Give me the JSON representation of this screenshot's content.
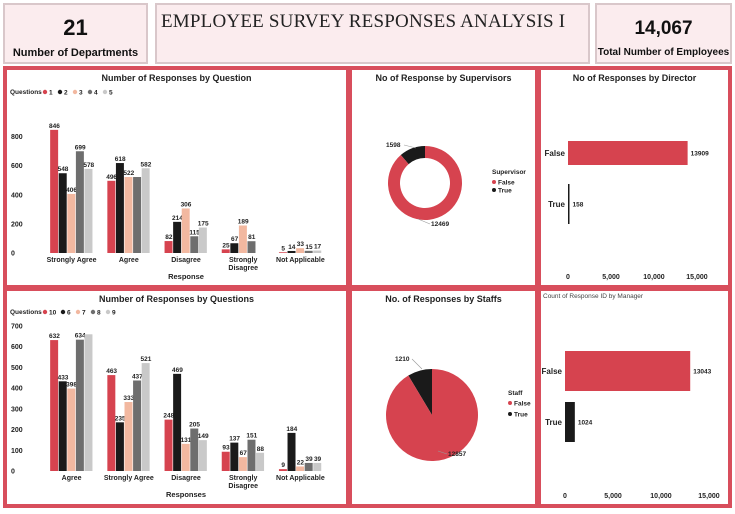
{
  "kpis": {
    "departments": {
      "value": "21",
      "label": "Number of  Departments"
    },
    "employees": {
      "value": "14,067",
      "label": "Total Number of Employees"
    }
  },
  "title": "EMPLOYEE SURVEY RESPONSES ANALYSIS I",
  "panels": {
    "q1_title": "Number of Responses by Question",
    "q2_title": "Number of Responses by Questions",
    "supervisor_title": "No of Response by Supervisors",
    "director_title": "No of Responses by Director",
    "staff_title": "No. of Responses by Staffs",
    "manager_title": "Count of Response ID by Manager"
  },
  "colors": {
    "red": "#d6434f",
    "black": "#1a1a1a",
    "dark": "#4d4d4d",
    "peach": "#f2b8a0",
    "grey": "#bdbdbd",
    "gray2": "#6e6e6e",
    "frame": "#d84e5c"
  },
  "chart_data": [
    {
      "id": "q1",
      "type": "bar",
      "title": "Number of Responses by Question",
      "legend_title": "Questions",
      "categories": [
        "Strongly Agree",
        "Agree",
        "Disagree",
        "Strongly Disagree",
        "Not Applicable"
      ],
      "series": [
        {
          "name": "1",
          "color": "#d6434f",
          "values": [
            846,
            496,
            82,
            25,
            5
          ]
        },
        {
          "name": "2",
          "color": "#1a1a1a",
          "values": [
            548,
            618,
            214,
            67,
            14
          ]
        },
        {
          "name": "3",
          "color": "#f2b8a0",
          "values": [
            406,
            522,
            306,
            189,
            33
          ]
        },
        {
          "name": "4",
          "color": "#6e6e6e",
          "values": [
            699,
            522,
            115,
            81,
            15
          ]
        },
        {
          "name": "5",
          "color": "#c9c9c9",
          "values": [
            578,
            582,
            175,
            0,
            17
          ]
        }
      ],
      "labels": [
        [
          "846",
          "496",
          "82",
          "25",
          "5"
        ],
        [
          "548",
          "618",
          "214",
          "67",
          "14"
        ],
        [
          "406",
          "522",
          "306",
          "189",
          "33"
        ],
        [
          "699",
          "",
          "115",
          "81",
          "15"
        ],
        [
          "578",
          "582",
          "175",
          "",
          "17"
        ]
      ],
      "xlabel": "Response",
      "yticks": [
        "0",
        "200",
        "400",
        "600",
        "800"
      ],
      "ylim": [
        0,
        900
      ],
      "legend_position": "top-left"
    },
    {
      "id": "q2",
      "type": "bar",
      "title": "Number of Responses by Questions",
      "legend_title": "Questions",
      "categories": [
        "Agree",
        "Strongly Agree",
        "Disagree",
        "Strongly Disagree",
        "Not Applicable"
      ],
      "series": [
        {
          "name": "10",
          "color": "#d6434f",
          "values": [
            632,
            463,
            248,
            93,
            9
          ]
        },
        {
          "name": "6",
          "color": "#1a1a1a",
          "values": [
            433,
            235,
            469,
            137,
            184
          ]
        },
        {
          "name": "7",
          "color": "#f2b8a0",
          "values": [
            398,
            333,
            131,
            67,
            22
          ]
        },
        {
          "name": "8",
          "color": "#6e6e6e",
          "values": [
            634,
            437,
            205,
            151,
            39
          ]
        },
        {
          "name": "9",
          "color": "#c9c9c9",
          "values": [
            660,
            521,
            149,
            88,
            39
          ]
        }
      ],
      "labels": [
        [
          "632",
          "463",
          "248",
          "93",
          "9"
        ],
        [
          "433",
          "235",
          "469",
          "137",
          "184"
        ],
        [
          "398",
          "333",
          "131",
          "67",
          "22"
        ],
        [
          "634",
          "437",
          "205",
          "151",
          "39"
        ],
        [
          "",
          "521",
          "149",
          "88",
          "39"
        ]
      ],
      "xlabel": "Responses",
      "yticks": [
        "0",
        "100",
        "200",
        "300",
        "400",
        "500",
        "600",
        "700"
      ],
      "ylim": [
        0,
        700
      ],
      "legend_position": "top-left"
    },
    {
      "id": "supervisor",
      "type": "pie",
      "donut": true,
      "title": "No of Response by Supervisors",
      "legend_title": "Supervisor",
      "slices": [
        {
          "name": "False",
          "value": 12469,
          "label": "12469",
          "color": "#d6434f"
        },
        {
          "name": "True",
          "value": 1598,
          "label": "1598",
          "color": "#1a1a1a"
        }
      ]
    },
    {
      "id": "director",
      "type": "bar",
      "orientation": "horizontal",
      "title": "No of Responses by Director",
      "categories": [
        "False",
        "True"
      ],
      "values": [
        13909,
        158
      ],
      "labels": [
        "13909",
        "158"
      ],
      "colors": [
        "#d6434f",
        "#1a1a1a"
      ],
      "xticks": [
        "0",
        "5,000",
        "10,000",
        "15,000"
      ],
      "xlim": [
        0,
        15000
      ]
    },
    {
      "id": "staff",
      "type": "pie",
      "title": "No. of Responses by Staffs",
      "legend_title": "Staff",
      "slices": [
        {
          "name": "False",
          "value": 12857,
          "label": "12857",
          "color": "#d6434f"
        },
        {
          "name": "True",
          "value": 1210,
          "label": "1210",
          "color": "#1a1a1a"
        }
      ]
    },
    {
      "id": "manager",
      "type": "bar",
      "orientation": "horizontal",
      "title": "Count of Response ID by Manager",
      "categories": [
        "False",
        "True"
      ],
      "values": [
        13043,
        1024
      ],
      "labels": [
        "13043",
        "1024"
      ],
      "colors": [
        "#d6434f",
        "#1a1a1a"
      ],
      "xticks": [
        "0",
        "5,000",
        "10,000",
        "15,000"
      ],
      "xlim": [
        0,
        15000
      ]
    }
  ]
}
